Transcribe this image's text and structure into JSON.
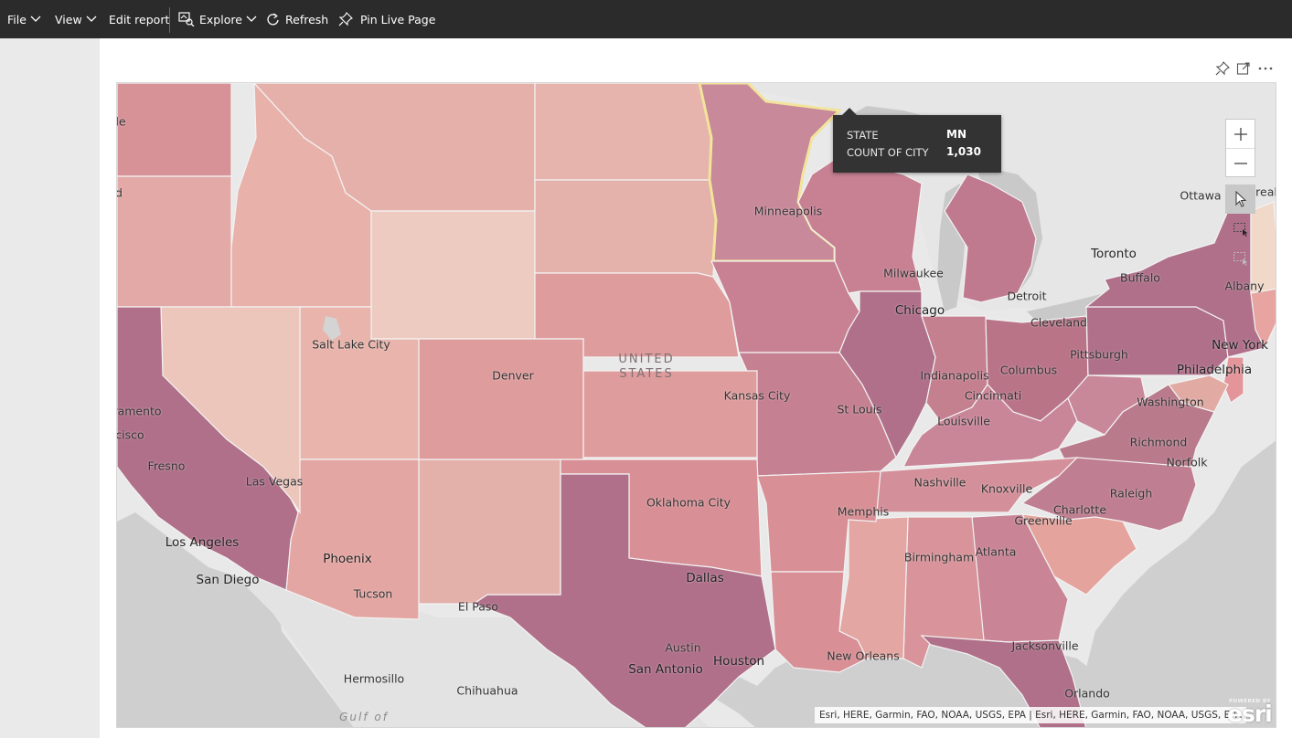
{
  "toolbar": {
    "file": "File",
    "view": "View",
    "edit_report": "Edit report",
    "explore": "Explore",
    "refresh": "Refresh",
    "pin_live_page": "Pin Live Page"
  },
  "visual_header": {
    "icons": [
      "pin-icon",
      "focus-mode-icon",
      "more-options-icon"
    ]
  },
  "map": {
    "country_label": [
      "UNITED",
      "STATES"
    ],
    "gulf_label": "Gulf of",
    "cities": [
      "Minneapolis",
      "Milwaukee",
      "Chicago",
      "Detroit",
      "Cleveland",
      "Toronto",
      "Buffalo",
      "Ottawa",
      "Albany",
      "New York",
      "Philadelphia",
      "Pittsburgh",
      "Columbus",
      "Indianapolis",
      "Cincinnati",
      "Louisville",
      "Washington",
      "Richmond",
      "Norfolk",
      "Raleigh",
      "Charlotte",
      "Greenville",
      "Atlanta",
      "Birmingham",
      "Nashville",
      "Knoxville",
      "Memphis",
      "St Louis",
      "Kansas City",
      "Oklahoma City",
      "Dallas",
      "Austin",
      "Houston",
      "San Antonio",
      "New Orleans",
      "Jacksonville",
      "Orlando",
      "El Paso",
      "Chihuahua",
      "Hermosillo",
      "Tucson",
      "Phoenix",
      "Las Vegas",
      "Los Angeles",
      "San Diego",
      "Fresno",
      "Denver",
      "Salt Lake City",
      "ramento",
      "cisco"
    ],
    "partial_edge_labels": [
      "le",
      "d",
      "real"
    ]
  },
  "tooltip": {
    "state_label": "STATE",
    "state_value": "MN",
    "count_label": "COUNT OF CITY",
    "count_value": "1,030"
  },
  "controls": {
    "zoom_in": "+",
    "zoom_out": "−",
    "select_tool": "select-pointer-icon",
    "rect_select": "rectangle-select-icon",
    "lasso_select": "lasso-select-icon"
  },
  "attribution": "Esri, HERE, Garmin, FAO, NOAA, USGS, EPA | Esri, HERE, Garmin, FAO, NOAA, USGS, EPA",
  "esri_logo": {
    "powered_by": "POWERED BY",
    "name": "esri"
  },
  "colors": {
    "toolbar_bg": "#2b2b2b",
    "choropleth_light": "#edcbc1",
    "choropleth_mid": "#d88f95",
    "choropleth_dark": "#b07089",
    "selected_outline": "#f2e49b",
    "tooltip_bg": "#333333"
  }
}
